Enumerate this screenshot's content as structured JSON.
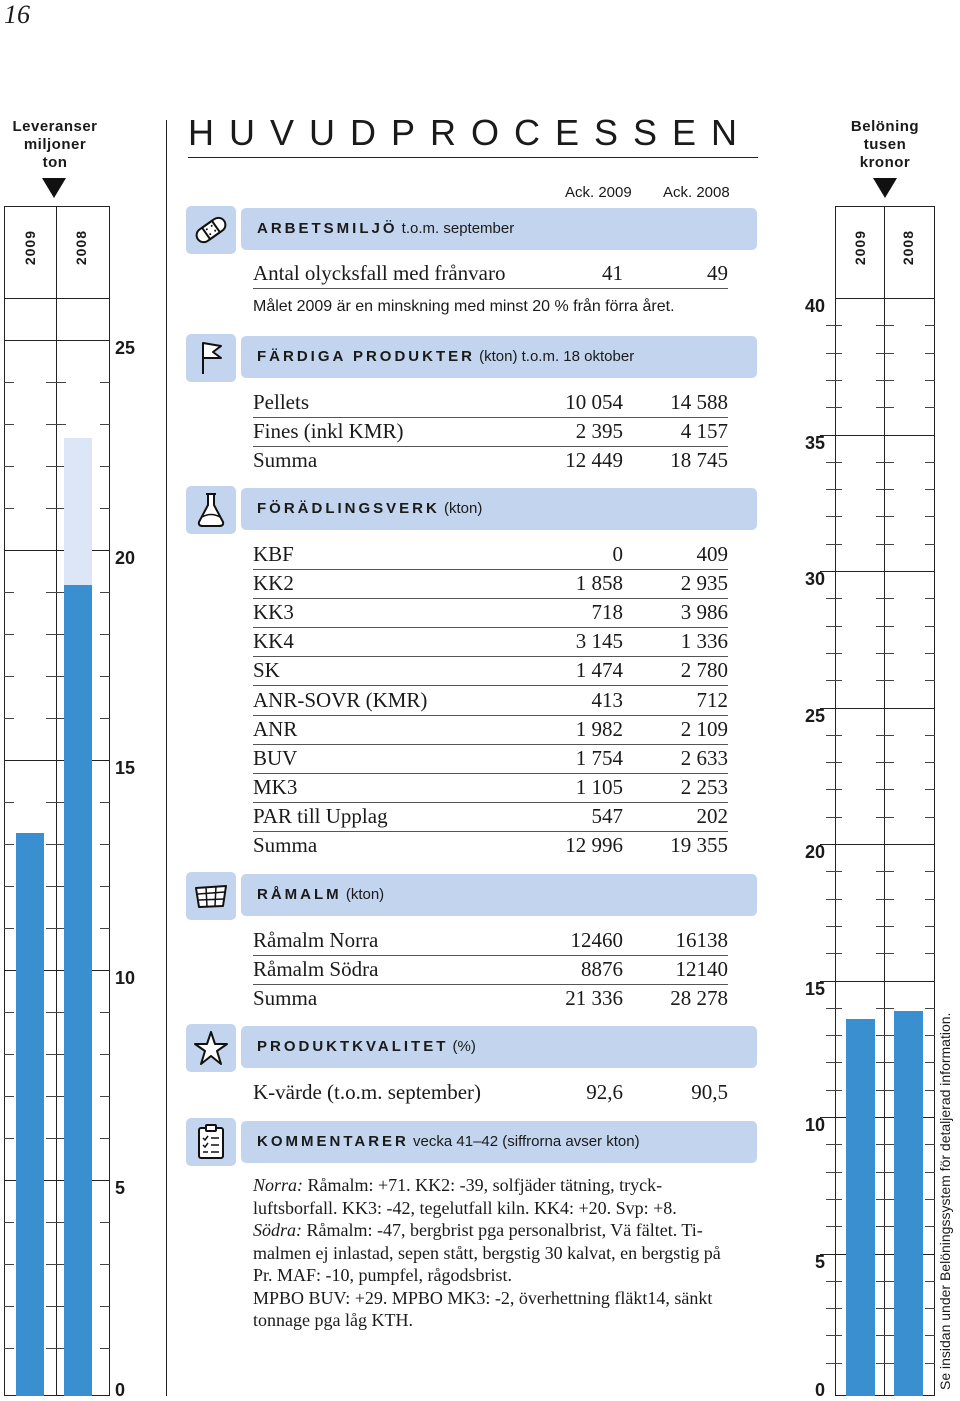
{
  "page_number": "16",
  "left_axis": {
    "title_lines": [
      "Leveranser",
      "miljoner",
      "ton"
    ],
    "years": [
      "2009",
      "2008"
    ],
    "labels": [
      "25",
      "20",
      "15",
      "10",
      "5",
      "0"
    ]
  },
  "right_axis": {
    "title_lines": [
      "Belöning",
      "tusen",
      "kronor"
    ],
    "years": [
      "2009",
      "2008"
    ],
    "labels": [
      "40",
      "35",
      "30",
      "25",
      "20",
      "15",
      "10",
      "5",
      "0"
    ],
    "side_note": "Se insidan under Belöningssystem för detaljerad information."
  },
  "main": {
    "title": "HUVUDPROCESSEN",
    "col_headers": [
      "Ack. 2009",
      "Ack. 2008"
    ]
  },
  "sections": {
    "arbetsmiljo": {
      "title": "ARBETSMILJÖ",
      "suffix": " t.o.m. september",
      "row": {
        "label": "Antal olycksfall med frånvaro",
        "v2009": "41",
        "v2008": "49"
      },
      "goal_note": "Målet 2009 är en minskning med minst 20 % från förra året."
    },
    "fardiga": {
      "title": "FÄRDIGA PRODUKTER",
      "suffix": " (kton) t.o.m. 18 oktober",
      "rows": [
        {
          "label": "Pellets",
          "v2009": "10 054",
          "v2008": "14 588"
        },
        {
          "label": "Fines (inkl KMR)",
          "v2009": "2 395",
          "v2008": "4 157"
        },
        {
          "label": "Summa",
          "v2009": "12 449",
          "v2008": "18 745"
        }
      ]
    },
    "foradling": {
      "title": "FÖRÄDLINGSVERK",
      "suffix": " (kton)",
      "rows": [
        {
          "label": "KBF",
          "v2009": "0",
          "v2008": "409"
        },
        {
          "label": "KK2",
          "v2009": "1 858",
          "v2008": "2 935"
        },
        {
          "label": "KK3",
          "v2009": "718",
          "v2008": "3 986"
        },
        {
          "label": "KK4",
          "v2009": "3 145",
          "v2008": "1 336"
        },
        {
          "label": "SK",
          "v2009": "1 474",
          "v2008": "2 780"
        },
        {
          "label": "ANR-SOVR (KMR)",
          "v2009": "413",
          "v2008": "712"
        },
        {
          "label": "ANR",
          "v2009": "1 982",
          "v2008": "2 109"
        },
        {
          "label": "BUV",
          "v2009": "1 754",
          "v2008": "2 633"
        },
        {
          "label": "MK3",
          "v2009": "1 105",
          "v2008": "2 253"
        },
        {
          "label": "PAR till Upplag",
          "v2009": "547",
          "v2008": "202"
        },
        {
          "label": "Summa",
          "v2009": "12 996",
          "v2008": "19 355"
        }
      ]
    },
    "ramalm": {
      "title": "RÅMALM",
      "suffix": " (kton)",
      "rows": [
        {
          "label": "Råmalm Norra",
          "v2009": "12460",
          "v2008": "16138"
        },
        {
          "label": "Råmalm Södra",
          "v2009": "8876",
          "v2008": "12140"
        },
        {
          "label": "Summa",
          "v2009": "21 336",
          "v2008": "28 278"
        }
      ]
    },
    "produktkvalitet": {
      "title": "PRODUKTKVALITET",
      "suffix": " (%)",
      "row": {
        "label": "K-värde (t.o.m. september)",
        "v2009": "92,6",
        "v2008": "90,5"
      }
    },
    "kommentarer": {
      "title": "KOMMENTARER",
      "suffix": " vecka 41–42 (siffrorna avser kton)",
      "norra_label": "Norra:",
      "norra_text": " Råmalm: +71. KK2: -39, solfjäder tätning, tryck-luftsborfall. KK3: -42, tegelutfall kiln. KK4: +20. Svp: +8.",
      "sodra_label": "Södra:",
      "sodra_text": " Råmalm: -47, bergbrist pga personalbrist, Vä fältet. Ti-malmen ej inlastad, sepen stått, bergstig 30 kalvat, en bergstig på Pr. MAF: -10, pumpfel, rågodsbrist.",
      "mpbo_text": "MPBO BUV: +29. MPBO MK3: -2, överhettning fläkt14, sänkt tonnage pga låg KTH."
    }
  },
  "chart_data": [
    {
      "type": "bar",
      "ylabel": "Leveranser miljoner ton",
      "categories": [
        "2009",
        "2008"
      ],
      "values": [
        13.4,
        19.3
      ],
      "ylim": [
        0,
        25
      ]
    },
    {
      "type": "bar",
      "ylabel": "Belöning tusen kronor",
      "categories": [
        "2009",
        "2008"
      ],
      "values": [
        13.8,
        14.1
      ],
      "ylim": [
        0,
        40
      ]
    }
  ],
  "colors": {
    "bar": "#3a8fd0",
    "bar_ghost": "#dde6f6",
    "header_bg": "#c3d4ee"
  }
}
